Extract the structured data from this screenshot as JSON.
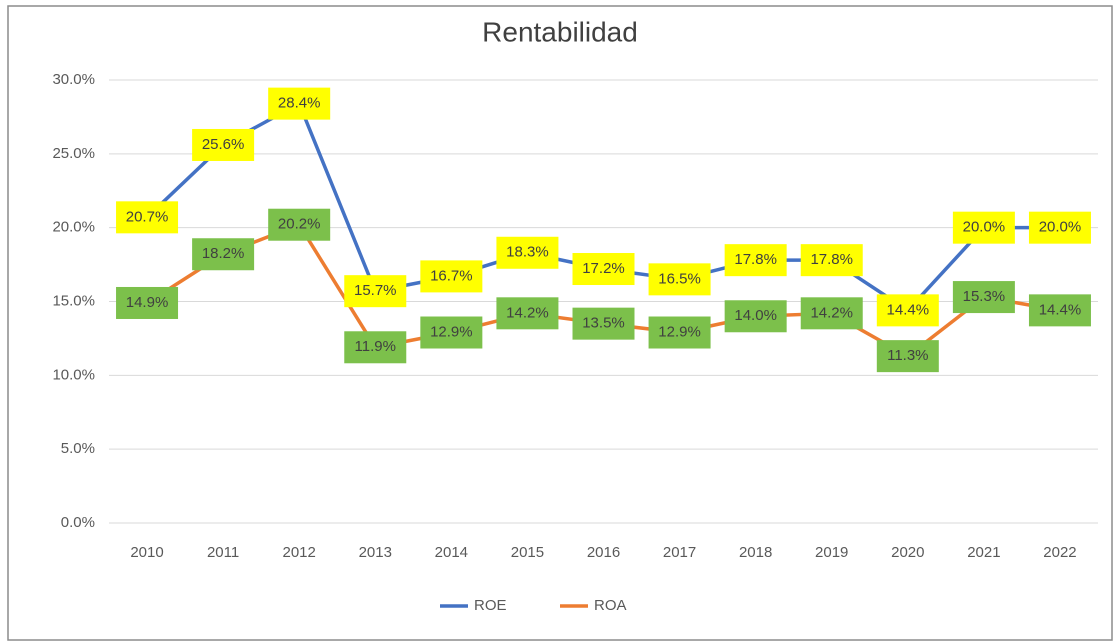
{
  "chart_data": {
    "type": "line",
    "title": "Rentabilidad",
    "categories": [
      "2010",
      "2011",
      "2012",
      "2013",
      "2014",
      "2015",
      "2016",
      "2017",
      "2018",
      "2019",
      "2020",
      "2021",
      "2022"
    ],
    "series": [
      {
        "name": "ROE",
        "color": "#4472c4",
        "label_color": "#ffff00",
        "values": [
          20.7,
          25.6,
          28.4,
          15.7,
          16.7,
          18.3,
          17.2,
          16.5,
          17.8,
          17.8,
          14.4,
          20.0,
          20.0
        ],
        "value_labels": [
          "20.7%",
          "25.6%",
          "28.4%",
          "15.7%",
          "16.7%",
          "18.3%",
          "17.2%",
          "16.5%",
          "17.8%",
          "17.8%",
          "14.4%",
          "20.0%",
          "20.0%"
        ]
      },
      {
        "name": "ROA",
        "color": "#ed7d31",
        "label_color": "#7cc04b",
        "values": [
          14.9,
          18.2,
          20.2,
          11.9,
          12.9,
          14.2,
          13.5,
          12.9,
          14.0,
          14.2,
          11.3,
          15.3,
          14.4
        ],
        "value_labels": [
          "14.9%",
          "18.2%",
          "20.2%",
          "11.9%",
          "12.9%",
          "14.2%",
          "13.5%",
          "12.9%",
          "14.0%",
          "14.2%",
          "11.3%",
          "15.3%",
          "14.4%"
        ]
      }
    ],
    "ylim": [
      0,
      32
    ],
    "yticks": [
      {
        "value": 0,
        "label": "0.0%"
      },
      {
        "value": 5,
        "label": "5.0%"
      },
      {
        "value": 10,
        "label": "10.0%"
      },
      {
        "value": 15,
        "label": "15.0%"
      },
      {
        "value": 20,
        "label": "20.0%"
      },
      {
        "value": 25,
        "label": "25.0%"
      },
      {
        "value": 30,
        "label": "30.0%"
      }
    ],
    "grid": true,
    "legend": "bottom"
  }
}
